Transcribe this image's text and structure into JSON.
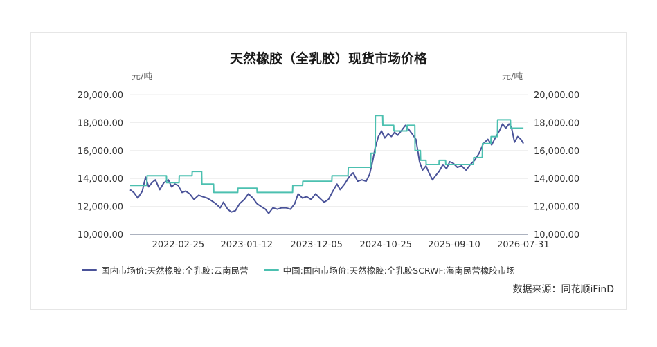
{
  "chart_data": {
    "type": "line",
    "title": "天然橡胶（全乳胶）现货市场价格",
    "y_unit_left": "元/吨",
    "y_unit_right": "元/吨",
    "ylim": [
      10000,
      20000
    ],
    "y_ticks": [
      "20,000.00",
      "18,000.00",
      "16,000.00",
      "14,000.00",
      "12,000.00",
      "10,000.00"
    ],
    "y_tick_values": [
      20000,
      18000,
      16000,
      14000,
      12000,
      10000
    ],
    "x_tick_labels": [
      "2022-02-25",
      "2023-01-12",
      "2023-12-05",
      "2024-10-25",
      "2025-09-10",
      "2026-07-31"
    ],
    "x_range": [
      "2021-07-15",
      "2026-08-20"
    ],
    "grid": "horizontal",
    "legend_position": "bottom",
    "series": [
      {
        "name": "国内市场价:天然橡胶:全乳胶:云南民营",
        "color": "#4a5399",
        "points": [
          [
            "2021-07-15",
            13200
          ],
          [
            "2021-08-01",
            13000
          ],
          [
            "2021-08-20",
            12600
          ],
          [
            "2021-09-10",
            13100
          ],
          [
            "2021-09-25",
            14100
          ],
          [
            "2021-10-10",
            13400
          ],
          [
            "2021-10-25",
            13700
          ],
          [
            "2021-11-10",
            13900
          ],
          [
            "2021-12-01",
            13200
          ],
          [
            "2021-12-20",
            13700
          ],
          [
            "2022-01-10",
            13900
          ],
          [
            "2022-01-25",
            13400
          ],
          [
            "2022-02-10",
            13600
          ],
          [
            "2022-02-25",
            13500
          ],
          [
            "2022-03-15",
            13000
          ],
          [
            "2022-04-01",
            13100
          ],
          [
            "2022-04-20",
            12900
          ],
          [
            "2022-05-10",
            12500
          ],
          [
            "2022-06-01",
            12800
          ],
          [
            "2022-06-20",
            12700
          ],
          [
            "2022-07-10",
            12600
          ],
          [
            "2022-08-01",
            12400
          ],
          [
            "2022-08-20",
            12200
          ],
          [
            "2022-09-10",
            11900
          ],
          [
            "2022-09-25",
            12300
          ],
          [
            "2022-10-15",
            11800
          ],
          [
            "2022-11-01",
            11600
          ],
          [
            "2022-11-20",
            11700
          ],
          [
            "2022-12-10",
            12200
          ],
          [
            "2023-01-01",
            12500
          ],
          [
            "2023-01-20",
            12900
          ],
          [
            "2023-02-10",
            12600
          ],
          [
            "2023-03-01",
            12200
          ],
          [
            "2023-03-20",
            12000
          ],
          [
            "2023-04-10",
            11800
          ],
          [
            "2023-04-25",
            11500
          ],
          [
            "2023-05-15",
            11900
          ],
          [
            "2023-06-05",
            11800
          ],
          [
            "2023-06-25",
            11900
          ],
          [
            "2023-07-15",
            11900
          ],
          [
            "2023-08-05",
            11800
          ],
          [
            "2023-08-25",
            12200
          ],
          [
            "2023-09-10",
            12900
          ],
          [
            "2023-09-30",
            12600
          ],
          [
            "2023-10-20",
            12700
          ],
          [
            "2023-11-10",
            12500
          ],
          [
            "2023-12-01",
            12900
          ],
          [
            "2023-12-20",
            12600
          ],
          [
            "2024-01-10",
            12300
          ],
          [
            "2024-01-30",
            12500
          ],
          [
            "2024-02-20",
            13100
          ],
          [
            "2024-03-10",
            13600
          ],
          [
            "2024-03-25",
            13200
          ],
          [
            "2024-04-15",
            13600
          ],
          [
            "2024-05-05",
            14100
          ],
          [
            "2024-05-25",
            14400
          ],
          [
            "2024-06-15",
            13800
          ],
          [
            "2024-07-05",
            13900
          ],
          [
            "2024-07-25",
            13800
          ],
          [
            "2024-08-10",
            14300
          ],
          [
            "2024-08-25",
            15300
          ],
          [
            "2024-09-05",
            16200
          ],
          [
            "2024-09-20",
            17000
          ],
          [
            "2024-10-05",
            17400
          ],
          [
            "2024-10-20",
            16900
          ],
          [
            "2024-11-05",
            17200
          ],
          [
            "2024-11-20",
            17000
          ],
          [
            "2024-12-05",
            17300
          ],
          [
            "2024-12-20",
            17100
          ],
          [
            "2025-01-10",
            17500
          ],
          [
            "2025-01-25",
            17800
          ],
          [
            "2025-02-10",
            17500
          ],
          [
            "2025-02-25",
            17200
          ],
          [
            "2025-03-15",
            16800
          ],
          [
            "2025-04-01",
            15200
          ],
          [
            "2025-04-15",
            14600
          ],
          [
            "2025-05-01",
            14900
          ],
          [
            "2025-05-15",
            14400
          ],
          [
            "2025-06-01",
            13900
          ],
          [
            "2025-06-15",
            14200
          ],
          [
            "2025-07-01",
            14500
          ],
          [
            "2025-07-20",
            15000
          ],
          [
            "2025-08-05",
            14700
          ],
          [
            "2025-08-20",
            15200
          ],
          [
            "2025-09-05",
            15100
          ],
          [
            "2025-09-25",
            14800
          ],
          [
            "2025-10-15",
            14900
          ],
          [
            "2025-11-05",
            14600
          ],
          [
            "2025-11-25",
            15000
          ],
          [
            "2025-12-15",
            15300
          ],
          [
            "2026-01-05",
            15800
          ],
          [
            "2026-01-25",
            16500
          ],
          [
            "2026-02-15",
            16800
          ],
          [
            "2026-03-05",
            16400
          ],
          [
            "2026-03-25",
            17000
          ],
          [
            "2026-04-10",
            17400
          ],
          [
            "2026-04-25",
            17900
          ],
          [
            "2026-05-10",
            17600
          ],
          [
            "2026-05-25",
            17900
          ],
          [
            "2026-06-05",
            17700
          ],
          [
            "2026-06-20",
            16600
          ],
          [
            "2026-07-05",
            17000
          ],
          [
            "2026-07-20",
            16800
          ],
          [
            "2026-08-01",
            16500
          ]
        ]
      },
      {
        "name": "中国:国内市场价:天然橡胶:全乳胶SCRWF:海南民营橡胶市场",
        "color": "#4cc0b0",
        "points": [
          [
            "2021-07-15",
            13500
          ],
          [
            "2021-10-01",
            13500
          ],
          [
            "2021-10-02",
            14200
          ],
          [
            "2022-01-01",
            14200
          ],
          [
            "2022-01-02",
            13700
          ],
          [
            "2022-03-01",
            13700
          ],
          [
            "2022-03-02",
            14200
          ],
          [
            "2022-05-01",
            14200
          ],
          [
            "2022-05-02",
            14500
          ],
          [
            "2022-06-15",
            14500
          ],
          [
            "2022-06-16",
            13600
          ],
          [
            "2022-08-10",
            13600
          ],
          [
            "2022-08-11",
            13000
          ],
          [
            "2022-12-01",
            13000
          ],
          [
            "2022-12-02",
            13300
          ],
          [
            "2023-03-01",
            13300
          ],
          [
            "2023-03-02",
            13000
          ],
          [
            "2023-08-15",
            13000
          ],
          [
            "2023-08-16",
            13500
          ],
          [
            "2023-10-01",
            13500
          ],
          [
            "2023-10-02",
            13800
          ],
          [
            "2024-02-15",
            13800
          ],
          [
            "2024-02-16",
            14200
          ],
          [
            "2024-05-01",
            14200
          ],
          [
            "2024-05-02",
            14800
          ],
          [
            "2024-08-15",
            14800
          ],
          [
            "2024-08-16",
            15800
          ],
          [
            "2024-09-05",
            15800
          ],
          [
            "2024-09-06",
            18500
          ],
          [
            "2024-10-10",
            18500
          ],
          [
            "2024-10-11",
            17800
          ],
          [
            "2024-12-01",
            17800
          ],
          [
            "2024-12-02",
            17400
          ],
          [
            "2025-02-01",
            17400
          ],
          [
            "2025-02-02",
            17800
          ],
          [
            "2025-03-10",
            17800
          ],
          [
            "2025-03-11",
            16000
          ],
          [
            "2025-04-05",
            16000
          ],
          [
            "2025-04-06",
            15300
          ],
          [
            "2025-05-01",
            15300
          ],
          [
            "2025-05-02",
            15000
          ],
          [
            "2025-07-01",
            15000
          ],
          [
            "2025-07-02",
            15300
          ],
          [
            "2025-08-01",
            15300
          ],
          [
            "2025-08-02",
            15000
          ],
          [
            "2025-12-10",
            15000
          ],
          [
            "2025-12-11",
            15500
          ],
          [
            "2026-01-20",
            15500
          ],
          [
            "2026-01-21",
            16500
          ],
          [
            "2026-03-01",
            16500
          ],
          [
            "2026-03-02",
            17000
          ],
          [
            "2026-04-01",
            17000
          ],
          [
            "2026-04-02",
            18200
          ],
          [
            "2026-06-01",
            18200
          ],
          [
            "2026-06-02",
            17600
          ],
          [
            "2026-08-01",
            17600
          ]
        ]
      }
    ]
  },
  "footer": {
    "source": "数据来源：同花顺iFinD"
  }
}
